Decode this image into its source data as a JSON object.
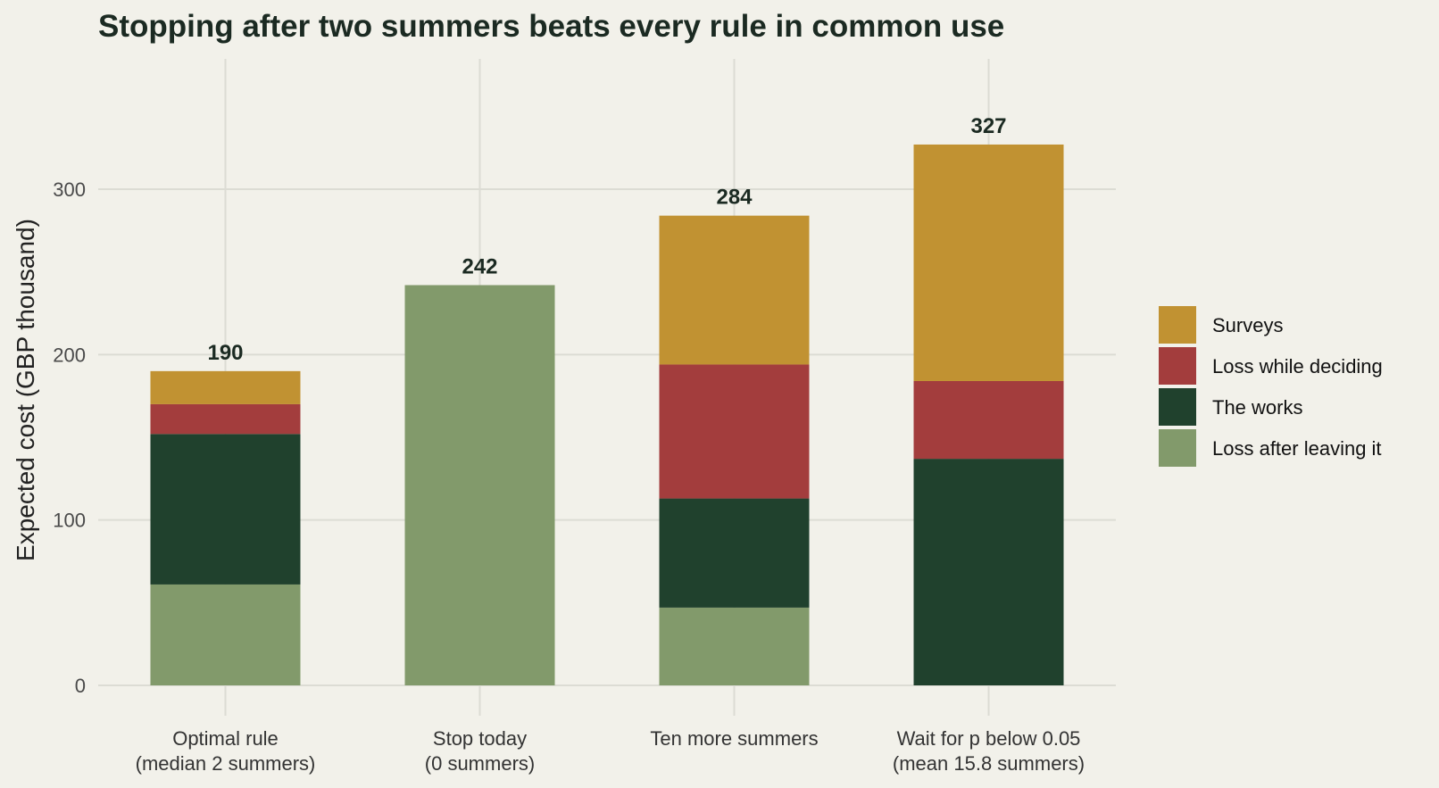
{
  "chart_data": {
    "type": "bar",
    "stacked": true,
    "title": "Stopping after two summers beats every rule in common use",
    "ylabel": "Expected cost (GBP thousand)",
    "xlabel": "",
    "ylim": [
      0,
      375
    ],
    "yticks": [
      0,
      100,
      200,
      300
    ],
    "grid": true,
    "legend_position": "right",
    "categories": [
      [
        "Optimal rule",
        "(median 2 summers)"
      ],
      [
        "Stop today",
        "(0 summers)"
      ],
      [
        "Ten more summers"
      ],
      [
        "Wait for p below 0.05",
        "(mean 15.8 summers)"
      ]
    ],
    "series": [
      {
        "name": "Loss after leaving it",
        "color": "#829a6b",
        "values": [
          61,
          242,
          47,
          0
        ]
      },
      {
        "name": "The works",
        "color": "#20412d",
        "values": [
          91,
          0,
          66,
          137
        ]
      },
      {
        "name": "Loss while deciding",
        "color": "#a33d3d",
        "values": [
          18,
          0,
          81,
          47
        ]
      },
      {
        "name": "Surveys",
        "color": "#c19232",
        "values": [
          20,
          0,
          90,
          143
        ]
      }
    ],
    "totals": [
      190,
      242,
      284,
      327
    ]
  }
}
